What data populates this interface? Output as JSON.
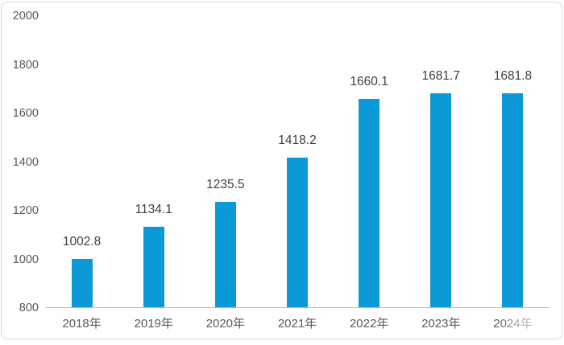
{
  "chart_data": {
    "type": "bar",
    "title": "",
    "xlabel": "",
    "ylabel": "",
    "categories": [
      "2018年",
      "2019年",
      "2020年",
      "2021年",
      "2022年",
      "2023年",
      "2024年"
    ],
    "values": [
      1002.8,
      1134.1,
      1235.5,
      1418.2,
      1660.1,
      1681.7,
      1681.8
    ],
    "value_labels": [
      "1002.8",
      "1134.1",
      "1235.5",
      "1418.2",
      "1660.1",
      "1681.7",
      "1681.8"
    ],
    "ylim": [
      800,
      2000
    ],
    "ytick_step": 200,
    "yticks": [
      "2000",
      "1800",
      "1600",
      "1400",
      "1200",
      "1000",
      "800"
    ],
    "grid": false,
    "legend": false,
    "colors": {
      "bar": "#0c99d8",
      "value_label_text": "#3f3f3f",
      "tick_text": "#595959",
      "axis_line": "#bfbfbf",
      "frame_border": "#dbdbdb",
      "background": "#ffffff"
    }
  }
}
